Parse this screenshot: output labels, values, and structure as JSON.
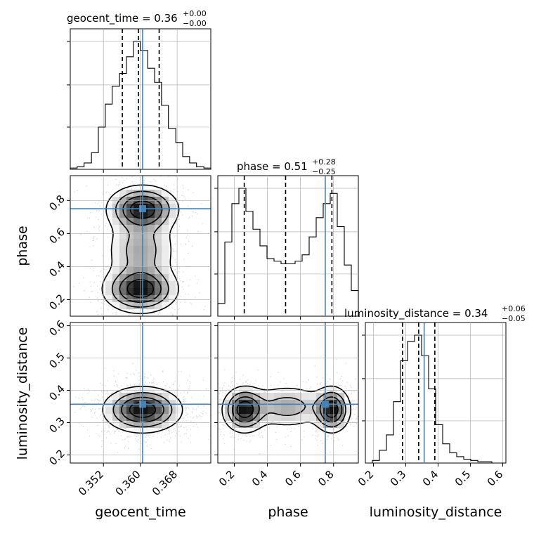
{
  "chart_data": {
    "type": "corner",
    "parameters": [
      "geocent_time",
      "phase",
      "luminosity_distance"
    ],
    "ranges": {
      "geocent_time": [
        0.3448,
        0.3753
      ],
      "phase": [
        0.1,
        0.95
      ],
      "luminosity_distance": [
        0.175,
        0.61
      ]
    },
    "ticks": {
      "geocent_time": {
        "values": [
          0.352,
          0.36,
          0.368
        ],
        "labels": [
          "0.352",
          "0.360",
          "0.368"
        ]
      },
      "phase": {
        "values": [
          0.2,
          0.4,
          0.6,
          0.8
        ],
        "labels": [
          "0.2",
          "0.4",
          "0.6",
          "0.8"
        ]
      },
      "luminosity_distance": {
        "values": [
          0.2,
          0.3,
          0.4,
          0.5,
          0.6
        ],
        "labels": [
          "0.2",
          "0.3",
          "0.4",
          "0.5",
          "0.6"
        ]
      }
    },
    "truth": {
      "geocent_time": 0.3605,
      "phase": 0.75,
      "luminosity_distance": 0.357
    },
    "quantiles": {
      "geocent_time": [
        0.3561,
        0.3596,
        0.3641
      ],
      "phase": [
        0.26,
        0.51,
        0.79
      ],
      "luminosity_distance": [
        0.29,
        0.34,
        0.39
      ]
    },
    "titles": {
      "geocent_time": {
        "name": "geocent_time",
        "median": "0.36",
        "plus": "+0.00",
        "minus": "−0.00"
      },
      "phase": {
        "name": "phase",
        "median": "0.51",
        "plus": "+0.28",
        "minus": "−0.25"
      },
      "luminosity_distance": {
        "name": "luminosity_distance",
        "median": "0.34",
        "plus": "+0.06",
        "minus": "−0.05"
      }
    },
    "histograms": {
      "geocent_time": {
        "edges": [
          0.3448,
          0.3463,
          0.3478,
          0.3494,
          0.3509,
          0.3524,
          0.3539,
          0.3555,
          0.357,
          0.3585,
          0.36,
          0.3616,
          0.3631,
          0.3646,
          0.3661,
          0.3677,
          0.3692,
          0.3707,
          0.3722,
          0.3738,
          0.3753
        ],
        "counts": [
          1,
          2,
          5,
          13,
          33,
          51,
          65,
          75,
          88,
          100,
          93,
          79,
          68,
          50,
          32,
          21,
          10,
          5,
          2,
          1
        ]
      },
      "phase": {
        "edges": [
          0.1,
          0.1425,
          0.185,
          0.2275,
          0.27,
          0.3125,
          0.355,
          0.3975,
          0.44,
          0.4825,
          0.525,
          0.5675,
          0.61,
          0.6525,
          0.695,
          0.7375,
          0.78,
          0.8225,
          0.865,
          0.9075,
          0.95
        ],
        "counts": [
          10,
          58,
          88,
          100,
          82,
          68,
          55,
          45,
          43,
          41,
          41,
          43,
          48,
          62,
          77,
          88,
          96,
          70,
          40,
          20
        ]
      },
      "luminosity_distance": {
        "edges": [
          0.175,
          0.19675,
          0.2185,
          0.24025,
          0.262,
          0.28375,
          0.3055,
          0.32725,
          0.349,
          0.37075,
          0.3925,
          0.41425,
          0.436,
          0.45775,
          0.4795,
          0.50125,
          0.523,
          0.54475,
          0.5665,
          0.58825,
          0.61
        ],
        "counts": [
          0,
          2,
          10,
          22,
          48,
          80,
          95,
          100,
          84,
          58,
          30,
          15,
          8,
          5,
          3,
          2,
          1,
          1,
          0,
          0
        ]
      }
    },
    "density_panels": [
      {
        "x": "geocent_time",
        "y": "phase",
        "modes": [
          {
            "x": 0.3605,
            "y": 0.75,
            "sx": 0.0038,
            "sy": 0.07,
            "w": 1.0
          },
          {
            "x": 0.36,
            "y": 0.26,
            "sx": 0.004,
            "sy": 0.07,
            "w": 1.0
          },
          {
            "x": 0.3602,
            "y": 0.5,
            "sx": 0.004,
            "sy": 0.12,
            "w": 0.45
          }
        ]
      },
      {
        "x": "geocent_time",
        "y": "luminosity_distance",
        "modes": [
          {
            "x": 0.3605,
            "y": 0.34,
            "sx": 0.0042,
            "sy": 0.035,
            "w": 1.0
          }
        ]
      },
      {
        "x": "phase",
        "y": "luminosity_distance",
        "modes": [
          {
            "x": 0.26,
            "y": 0.34,
            "sx": 0.065,
            "sy": 0.035,
            "w": 1.0
          },
          {
            "x": 0.79,
            "y": 0.34,
            "sx": 0.055,
            "sy": 0.035,
            "w": 1.0
          },
          {
            "x": 0.52,
            "y": 0.35,
            "sx": 0.13,
            "sy": 0.035,
            "w": 0.45
          }
        ]
      }
    ],
    "colors": {
      "truth": "#4682b4",
      "hist": "#000000",
      "grid": "#b0b0b0"
    }
  }
}
